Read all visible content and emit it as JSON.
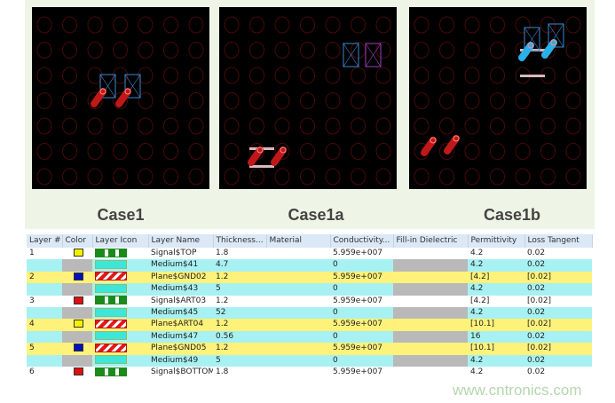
{
  "cases": [
    {
      "label": "Case1"
    },
    {
      "label": "Case1a"
    },
    {
      "label": "Case1b"
    }
  ],
  "table": {
    "columns": [
      "Layer #",
      "Color",
      "Layer Icon",
      "Layer Name",
      "Thickness...",
      "Material",
      "Conductivity...",
      "Fill-in Dielectric",
      "Permittivity",
      "Loss Tangent"
    ],
    "rows": [
      {
        "num": "1",
        "type": "signal",
        "color": "#f2f200",
        "name": "Signal$TOP",
        "thickness": "1.8",
        "material": "",
        "conductivity": "5.959e+007",
        "permittivity": "4.2",
        "loss": "0.02"
      },
      {
        "num": "",
        "type": "medium",
        "color": "",
        "name": "Medium$41",
        "thickness": "4.7",
        "material": "",
        "conductivity": "0",
        "permittivity": "4.2",
        "loss": "0.02"
      },
      {
        "num": "2",
        "type": "plane",
        "color": "#0010c0",
        "name": "Plane$GND02",
        "thickness": "1.2",
        "material": "",
        "conductivity": "5.959e+007",
        "permittivity": "[4.2]",
        "loss": "[0.02]"
      },
      {
        "num": "",
        "type": "medium",
        "color": "",
        "name": "Medium$43",
        "thickness": "5",
        "material": "",
        "conductivity": "0",
        "permittivity": "4.2",
        "loss": "0.02"
      },
      {
        "num": "3",
        "type": "signal",
        "color": "#e01010",
        "name": "Signal$ART03",
        "thickness": "1.2",
        "material": "",
        "conductivity": "5.959e+007",
        "permittivity": "[4.2]",
        "loss": "[0.02]"
      },
      {
        "num": "",
        "type": "medium",
        "color": "",
        "name": "Medium$45",
        "thickness": "52",
        "material": "",
        "conductivity": "0",
        "permittivity": "4.2",
        "loss": "0.02"
      },
      {
        "num": "4",
        "type": "plane",
        "color": "#f2f200",
        "name": "Plane$ART04",
        "thickness": "1.2",
        "material": "",
        "conductivity": "5.959e+007",
        "permittivity": "[10.1]",
        "loss": "[0.02]"
      },
      {
        "num": "",
        "type": "medium",
        "color": "",
        "name": "Medium$47",
        "thickness": "0.56",
        "material": "",
        "conductivity": "0",
        "permittivity": "16",
        "loss": "0.02"
      },
      {
        "num": "5",
        "type": "plane",
        "color": "#0010c0",
        "name": "Plane$GND05",
        "thickness": "1.2",
        "material": "",
        "conductivity": "5.959e+007",
        "permittivity": "[10.1]",
        "loss": "[0.02]"
      },
      {
        "num": "",
        "type": "medium",
        "color": "",
        "name": "Medium$49",
        "thickness": "5",
        "material": "",
        "conductivity": "0",
        "permittivity": "4.2",
        "loss": "0.02"
      },
      {
        "num": "6",
        "type": "signal",
        "color": "#e01010",
        "name": "Signal$BOTTOM",
        "thickness": "1.8",
        "material": "",
        "conductivity": "5.959e+007",
        "permittivity": "4.2",
        "loss": "0.02"
      }
    ]
  },
  "watermark": "www.cntronics.com"
}
